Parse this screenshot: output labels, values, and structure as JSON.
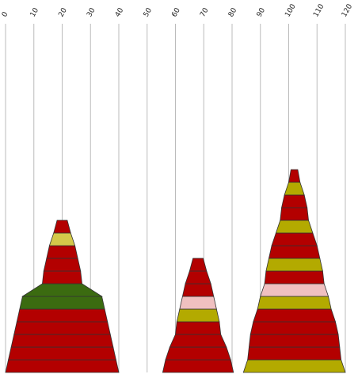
{
  "chart_data": {
    "type": "bar",
    "orientation": "horizontal-stacked-pyramid",
    "title": "",
    "xlabel": "",
    "ylabel": "",
    "xlim": [
      0,
      120
    ],
    "x_ticks": [
      "0",
      "10",
      "20",
      "30",
      "40",
      "50",
      "60",
      "70",
      "80",
      "90",
      "100",
      "110",
      "120"
    ],
    "grid": "vertical",
    "legend": "none",
    "colors": {
      "red": "#b30000",
      "olive": "#b3aa00",
      "khaki": "#d4c84a",
      "pink": "#f0c0c0",
      "darkgreen": "#3b6b10",
      "gridline": "#bbbbbb",
      "outline": "#333333"
    },
    "pyramids": [
      {
        "name": "",
        "center": 20,
        "layers": [
          {
            "width": 40,
            "color": "red"
          },
          {
            "width": 38,
            "color": "red"
          },
          {
            "width": 36,
            "color": "red"
          },
          {
            "width": 34,
            "color": "red"
          },
          {
            "width": 32,
            "color": "red"
          },
          {
            "width": 30,
            "color": "darkgreen"
          },
          {
            "width": 28,
            "color": "darkgreen"
          },
          {
            "width": 14,
            "color": "red"
          },
          {
            "width": 13,
            "color": "red"
          },
          {
            "width": 11,
            "color": "red"
          },
          {
            "width": 9,
            "color": "khaki"
          },
          {
            "width": 6,
            "color": "red"
          }
        ]
      },
      {
        "name": "",
        "center": 68,
        "layers": [
          {
            "width": 25,
            "color": "red"
          },
          {
            "width": 23,
            "color": "red"
          },
          {
            "width": 20,
            "color": "red"
          },
          {
            "width": 16,
            "color": "red"
          },
          {
            "width": 15,
            "color": "olive"
          },
          {
            "width": 13,
            "color": "pink"
          },
          {
            "width": 11,
            "color": "red"
          },
          {
            "width": 9,
            "color": "red"
          },
          {
            "width": 6,
            "color": "red"
          }
        ]
      },
      {
        "name": "",
        "center": 102,
        "layers": [
          {
            "width": 36,
            "color": "olive"
          },
          {
            "width": 33,
            "color": "red"
          },
          {
            "width": 32,
            "color": "red"
          },
          {
            "width": 31,
            "color": "red"
          },
          {
            "width": 29,
            "color": "red"
          },
          {
            "width": 26,
            "color": "olive"
          },
          {
            "width": 24,
            "color": "pink"
          },
          {
            "width": 21,
            "color": "red"
          },
          {
            "width": 20,
            "color": "olive"
          },
          {
            "width": 18,
            "color": "red"
          },
          {
            "width": 16,
            "color": "red"
          },
          {
            "width": 13,
            "color": "olive"
          },
          {
            "width": 10,
            "color": "red"
          },
          {
            "width": 9,
            "color": "red"
          },
          {
            "width": 7,
            "color": "olive"
          },
          {
            "width": 4,
            "color": "red"
          }
        ]
      }
    ]
  }
}
